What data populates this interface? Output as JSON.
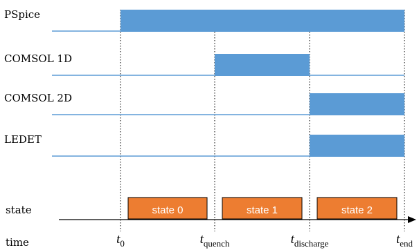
{
  "rows": [
    {
      "label": "PSpice",
      "active": [
        "t0",
        "tend"
      ]
    },
    {
      "label": "COMSOL 1D",
      "active": [
        "tquench",
        "tdischarge"
      ]
    },
    {
      "label": "COMSOL 2D",
      "active": [
        "tdischarge",
        "tend"
      ]
    },
    {
      "label": "LEDET",
      "active": [
        "tdischarge",
        "tend"
      ]
    }
  ],
  "state_row_label": "state",
  "time_row_label": "time",
  "states": [
    {
      "label": "state 0",
      "from": "t0",
      "to": "tquench"
    },
    {
      "label": "state 1",
      "from": "tquench",
      "to": "tdischarge"
    },
    {
      "label": "state 2",
      "from": "tdischarge",
      "to": "tend"
    }
  ],
  "time_marks": [
    {
      "id": "t0",
      "main": "t",
      "sub": "0"
    },
    {
      "id": "tquench",
      "main": "t",
      "sub": "quench"
    },
    {
      "id": "tdischarge",
      "main": "t",
      "sub": "discharge"
    },
    {
      "id": "tend",
      "main": "t",
      "sub": "end"
    }
  ],
  "colors": {
    "bar": "#5b9bd5",
    "line": "#5b9bd5",
    "state_fill": "#ed7d31",
    "state_border": "#000000",
    "axis": "#000000"
  }
}
